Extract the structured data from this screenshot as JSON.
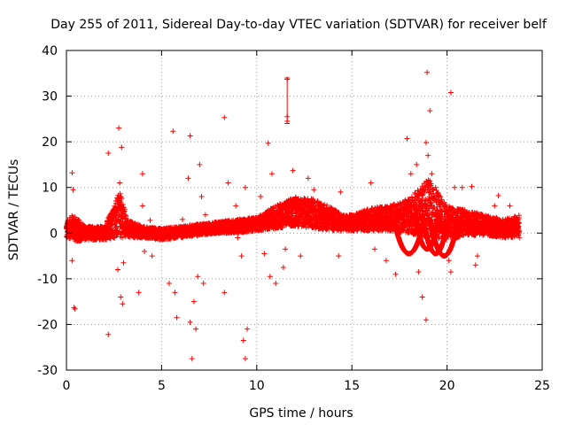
{
  "chart_data": {
    "type": "scatter",
    "title": "Day 255 of 2011, Sidereal Day-to-day VTEC variation (SDTVAR) for receiver belf",
    "xlabel": "GPS time / hours",
    "ylabel": "SDTVAR / TECUs",
    "xlim": [
      0,
      25
    ],
    "ylim": [
      -30,
      40
    ],
    "xticks": [
      0,
      5,
      10,
      15,
      20,
      25
    ],
    "yticks": [
      -30,
      -20,
      -10,
      0,
      10,
      20,
      30,
      40
    ],
    "grid": true,
    "marker": "plus",
    "color": "#ff0000",
    "series": [
      {
        "name": "SDTVAR",
        "band": [
          {
            "x": 0.0,
            "lo": -1.5,
            "hi": 2.5
          },
          {
            "x": 0.3,
            "lo": -1.0,
            "hi": 4.0
          },
          {
            "x": 0.5,
            "lo": -2.0,
            "hi": 3.5
          },
          {
            "x": 1.0,
            "lo": -1.5,
            "hi": 1.5
          },
          {
            "x": 2.0,
            "lo": -1.5,
            "hi": 1.5
          },
          {
            "x": 2.8,
            "lo": -1.0,
            "hi": 9.0
          },
          {
            "x": 3.2,
            "lo": -1.0,
            "hi": 3.0
          },
          {
            "x": 4.0,
            "lo": -1.0,
            "hi": 1.5
          },
          {
            "x": 5.0,
            "lo": -1.5,
            "hi": 1.0
          },
          {
            "x": 6.0,
            "lo": -1.0,
            "hi": 1.5
          },
          {
            "x": 7.0,
            "lo": -0.5,
            "hi": 2.0
          },
          {
            "x": 8.0,
            "lo": 0.0,
            "hi": 2.5
          },
          {
            "x": 9.0,
            "lo": 0.0,
            "hi": 3.0
          },
          {
            "x": 10.0,
            "lo": 0.5,
            "hi": 3.5
          },
          {
            "x": 11.0,
            "lo": 1.0,
            "hi": 6.0
          },
          {
            "x": 12.0,
            "lo": 1.5,
            "hi": 8.0
          },
          {
            "x": 13.0,
            "lo": 1.0,
            "hi": 7.5
          },
          {
            "x": 14.0,
            "lo": 0.5,
            "hi": 5.5
          },
          {
            "x": 14.5,
            "lo": 0.5,
            "hi": 4.0
          },
          {
            "x": 15.0,
            "lo": 0.5,
            "hi": 4.0
          },
          {
            "x": 16.0,
            "lo": 0.5,
            "hi": 5.5
          },
          {
            "x": 17.0,
            "lo": 0.5,
            "hi": 6.0
          },
          {
            "x": 18.0,
            "lo": 0.0,
            "hi": 7.5
          },
          {
            "x": 19.0,
            "lo": -1.0,
            "hi": 12.0
          },
          {
            "x": 20.0,
            "lo": -1.5,
            "hi": 6.0
          },
          {
            "x": 21.0,
            "lo": -0.5,
            "hi": 5.0
          },
          {
            "x": 22.0,
            "lo": -0.5,
            "hi": 4.0
          },
          {
            "x": 23.0,
            "lo": -1.0,
            "hi": 3.0
          },
          {
            "x": 23.8,
            "lo": -1.0,
            "hi": 4.0
          }
        ],
        "arcs": [
          {
            "x0": 17.2,
            "x1": 18.8,
            "ymin": -4.5,
            "yend": 3.0
          },
          {
            "x0": 18.3,
            "x1": 19.6,
            "ymin": -3.5,
            "yend": 4.0
          },
          {
            "x0": 18.7,
            "x1": 20.1,
            "ymin": -4.5,
            "yend": 4.0
          },
          {
            "x0": 19.1,
            "x1": 20.6,
            "ymin": -5.0,
            "yend": 3.0
          }
        ],
        "points": [
          [
            0.3,
            13.2
          ],
          [
            0.3,
            -6.0
          ],
          [
            0.4,
            -16.3
          ],
          [
            0.45,
            -16.6
          ],
          [
            0.35,
            9.5
          ],
          [
            2.2,
            17.5
          ],
          [
            2.2,
            -22.2
          ],
          [
            2.75,
            23.0
          ],
          [
            2.8,
            11.0
          ],
          [
            2.9,
            18.8
          ],
          [
            2.95,
            -15.5
          ],
          [
            2.85,
            -14.0
          ],
          [
            2.7,
            -8.0
          ],
          [
            3.0,
            -6.5
          ],
          [
            3.8,
            -13.0
          ],
          [
            4.0,
            6.0
          ],
          [
            4.1,
            -4.0
          ],
          [
            4.0,
            13.0
          ],
          [
            4.4,
            2.8
          ],
          [
            4.5,
            -5.0
          ],
          [
            5.4,
            -11.0
          ],
          [
            5.6,
            22.3
          ],
          [
            5.7,
            -13.0
          ],
          [
            5.8,
            -18.5
          ],
          [
            6.1,
            3.0
          ],
          [
            6.4,
            12.0
          ],
          [
            6.5,
            21.3
          ],
          [
            6.5,
            -19.5
          ],
          [
            6.6,
            -27.5
          ],
          [
            6.7,
            -15.0
          ],
          [
            6.8,
            -21.0
          ],
          [
            7.0,
            15.0
          ],
          [
            7.1,
            8.0
          ],
          [
            7.2,
            -11.0
          ],
          [
            6.9,
            -9.5
          ],
          [
            7.3,
            4.0
          ],
          [
            8.3,
            25.3
          ],
          [
            8.5,
            11.0
          ],
          [
            8.3,
            -13.0
          ],
          [
            8.9,
            6.0
          ],
          [
            9.0,
            -1.0
          ],
          [
            9.2,
            -5.0
          ],
          [
            9.3,
            -23.5
          ],
          [
            9.4,
            -27.5
          ],
          [
            9.5,
            -21.0
          ],
          [
            9.4,
            10.0
          ],
          [
            10.2,
            8.0
          ],
          [
            10.4,
            -4.5
          ],
          [
            10.6,
            19.7
          ],
          [
            10.7,
            -9.5
          ],
          [
            10.8,
            13.0
          ],
          [
            11.0,
            -11.0
          ],
          [
            11.2,
            5.0
          ],
          [
            11.5,
            -3.5
          ],
          [
            11.6,
            25.5
          ],
          [
            11.6,
            24.5
          ],
          [
            11.6,
            33.7
          ],
          [
            11.9,
            13.7
          ],
          [
            11.4,
            -7.5
          ],
          [
            12.3,
            -5.0
          ],
          [
            12.7,
            12.0
          ],
          [
            13.0,
            9.5
          ],
          [
            13.2,
            7.0
          ],
          [
            14.3,
            -5.0
          ],
          [
            14.4,
            9.0
          ],
          [
            16.0,
            11.0
          ],
          [
            16.5,
            5.0
          ],
          [
            16.2,
            -3.5
          ],
          [
            16.8,
            -6.0
          ],
          [
            17.3,
            -9.0
          ],
          [
            17.8,
            -4.0
          ],
          [
            17.9,
            20.7
          ],
          [
            18.1,
            13.0
          ],
          [
            18.4,
            15.0
          ],
          [
            18.5,
            -8.5
          ],
          [
            18.7,
            -14.0
          ],
          [
            18.9,
            19.8
          ],
          [
            18.95,
            35.2
          ],
          [
            18.9,
            -19.0
          ],
          [
            19.0,
            17.0
          ],
          [
            19.1,
            26.8
          ],
          [
            19.2,
            13.0
          ],
          [
            19.4,
            10.0
          ],
          [
            20.1,
            -6.0
          ],
          [
            20.2,
            -8.5
          ],
          [
            20.2,
            30.8
          ],
          [
            20.4,
            10.0
          ],
          [
            20.8,
            10.0
          ],
          [
            21.3,
            10.2
          ],
          [
            21.5,
            -7.0
          ],
          [
            21.6,
            -5.0
          ],
          [
            22.5,
            6.0
          ],
          [
            22.7,
            8.2
          ],
          [
            23.3,
            6.0
          ],
          [
            23.7,
            2.0
          ]
        ],
        "errorbar": {
          "x": 11.6,
          "ylo": 24.0,
          "yhi": 34.0
        }
      }
    ]
  }
}
